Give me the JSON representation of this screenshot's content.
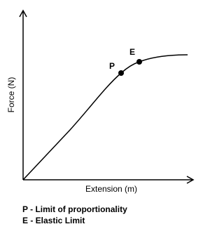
{
  "axes": {
    "y_label": "Force (N)",
    "x_label": "Extension (m)"
  },
  "points": [
    {
      "label": "P"
    },
    {
      "label": "E"
    }
  ],
  "legend": [
    "P - Limit of proportionality",
    "E - Elastic Limit"
  ]
}
